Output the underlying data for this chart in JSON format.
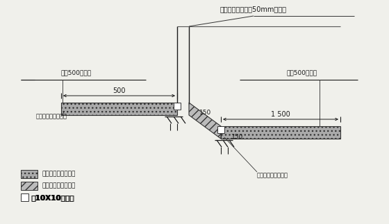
{
  "bg_color": "#f0f0eb",
  "line_color": "#1a1a1a",
  "title_text": "阴阳角要控制半径50mm的圆弧",
  "label_left_control": "放上500控制线",
  "label_right_control": "放上500控制线",
  "label_left_insert": "插上钉筋以固定方木",
  "label_right_insert": "插上钉筋以固定方木",
  "dim_500": "500",
  "dim_1500": "1 500",
  "dim_150a": "150",
  "dim_150b": "150",
  "legend1": "第一次浇筑平面垫层",
  "legend2": "第二次浇筑斜面垫层",
  "legend3_text": "10X10的方木"
}
